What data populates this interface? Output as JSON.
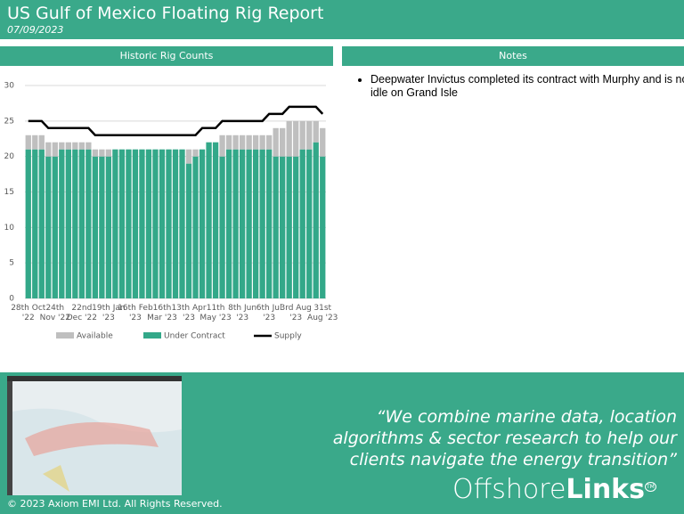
{
  "header": {
    "title": "US Gulf of Mexico Floating Rig Report",
    "date": "07/09/2023"
  },
  "chart_data": {
    "type": "bar",
    "stacked": true,
    "title": "Historic Rig Counts",
    "categories": [
      "28th Oct '22",
      null,
      null,
      null,
      "24th Nov '22",
      null,
      null,
      null,
      "22nd Dec '22",
      null,
      null,
      null,
      "19th Jan '23",
      null,
      null,
      null,
      "16th Feb '23",
      null,
      null,
      null,
      "16th Mar '23",
      null,
      null,
      null,
      "13th Apr '23",
      null,
      null,
      null,
      "11th May '23",
      null,
      null,
      null,
      "8th Jun '23",
      null,
      null,
      null,
      "6th Jul '23",
      null,
      null,
      null,
      "3rd Aug '23",
      null,
      null,
      null,
      "31st Aug '23"
    ],
    "series": [
      {
        "name": "Available",
        "color": "#bfbfbf",
        "values": [
          2,
          2,
          2,
          2,
          2,
          1,
          1,
          1,
          1,
          1,
          1,
          1,
          1,
          0,
          0,
          0,
          0,
          0,
          0,
          0,
          0,
          0,
          0,
          0,
          2,
          1,
          0,
          0,
          0,
          3,
          2,
          2,
          2,
          2,
          2,
          2,
          2,
          4,
          4,
          5,
          5,
          4,
          4,
          3,
          4
        ]
      },
      {
        "name": "Under Contract",
        "color": "#33a889",
        "values": [
          21,
          21,
          21,
          20,
          20,
          21,
          21,
          21,
          21,
          21,
          20,
          20,
          20,
          21,
          21,
          21,
          21,
          21,
          21,
          21,
          21,
          21,
          21,
          21,
          19,
          20,
          21,
          22,
          22,
          20,
          21,
          21,
          21,
          21,
          21,
          21,
          21,
          20,
          20,
          20,
          20,
          21,
          21,
          22,
          20
        ]
      },
      {
        "name": "Supply",
        "type": "line",
        "color": "#000000",
        "values": [
          25,
          25,
          25,
          24,
          24,
          24,
          24,
          24,
          24,
          24,
          23,
          23,
          23,
          23,
          23,
          23,
          23,
          23,
          23,
          23,
          23,
          23,
          23,
          23,
          23,
          23,
          24,
          24,
          24,
          25,
          25,
          25,
          25,
          25,
          25,
          25,
          26,
          26,
          26,
          27,
          27,
          27,
          27,
          27,
          26
        ]
      }
    ],
    "ylim": [
      0,
      30
    ],
    "yticks": [
      0,
      5,
      10,
      15,
      20,
      25,
      30
    ],
    "grid": true,
    "legend": "bottom"
  },
  "notes": {
    "title": "Notes",
    "items": [
      "Deepwater Invictus completed its contract with Murphy and is now idle on Grand Isle"
    ]
  },
  "footer": {
    "quote": "“We  combine marine data, location algorithms & sector research to help our clients navigate the energy transition”",
    "logo": {
      "light": "Offshore",
      "bold": "Links",
      "mark": "TM"
    },
    "copyright": "© 2023 Axiom EMI Ltd. All Rights Reserved."
  }
}
